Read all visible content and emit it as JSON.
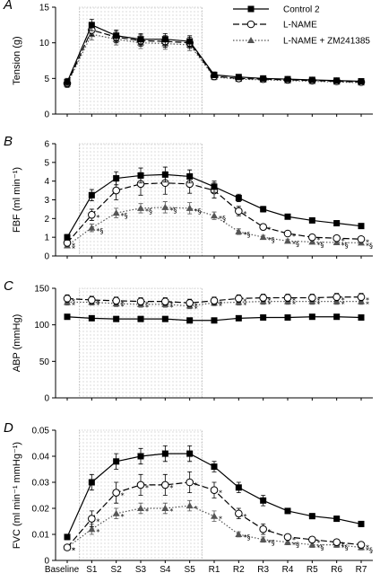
{
  "x_categories": [
    "Baseline",
    "S1",
    "S2",
    "S3",
    "S4",
    "S5",
    "R1",
    "R2",
    "R3",
    "R4",
    "R5",
    "R6",
    "R7"
  ],
  "stim_region": {
    "from": "S1",
    "to": "S5"
  },
  "legend": [
    {
      "label": "Control 2",
      "marker": "square-filled",
      "line": "solid"
    },
    {
      "label": "L-NAME",
      "marker": "circle-open",
      "line": "dashed"
    },
    {
      "label": "L-NAME + ZM241385",
      "marker": "triangle-filled",
      "line": "dotted"
    }
  ],
  "colors": {
    "ink": "#000000",
    "triangle": "#555555",
    "region_dot": "#999999"
  },
  "chart_data": [
    {
      "panel": "A",
      "type": "line",
      "ylabel": "Tension (g)",
      "ylim": [
        0,
        15
      ],
      "yticks": [
        0,
        5,
        10,
        15
      ],
      "grid": false,
      "series": [
        {
          "name": "Control 2",
          "values": [
            4.5,
            12.5,
            11,
            10.5,
            10.5,
            10.2,
            5.5,
            5.2,
            5.0,
            4.9,
            4.8,
            4.7,
            4.6
          ],
          "err": [
            0.5,
            0.8,
            0.8,
            0.8,
            0.8,
            0.8,
            0.4,
            0.3,
            0.3,
            0.3,
            0.3,
            0.3,
            0.3
          ]
        },
        {
          "name": "L-NAME",
          "values": [
            4.3,
            11.8,
            10.8,
            10.3,
            10.2,
            10.0,
            5.3,
            5.0,
            4.9,
            4.8,
            4.7,
            4.6,
            4.5
          ],
          "err": [
            0.5,
            0.8,
            0.8,
            0.8,
            0.8,
            0.8,
            0.4,
            0.3,
            0.3,
            0.3,
            0.3,
            0.3,
            0.3
          ]
        },
        {
          "name": "L-NAME + ZM241385",
          "values": [
            4.2,
            11.2,
            10.5,
            10.0,
            9.9,
            9.7,
            5.2,
            4.9,
            4.8,
            4.7,
            4.6,
            4.5,
            4.4
          ],
          "err": [
            0.5,
            0.8,
            0.8,
            0.8,
            0.8,
            0.8,
            0.4,
            0.3,
            0.3,
            0.3,
            0.3,
            0.3,
            0.3
          ]
        }
      ],
      "annotations": []
    },
    {
      "panel": "B",
      "type": "line",
      "ylabel": "FBF (ml min⁻¹)",
      "ylim": [
        0,
        6
      ],
      "yticks": [
        0,
        1,
        2,
        3,
        4,
        5,
        6
      ],
      "grid": false,
      "series": [
        {
          "name": "Control 2",
          "values": [
            1.0,
            3.25,
            4.15,
            4.3,
            4.35,
            4.25,
            3.7,
            3.1,
            2.5,
            2.1,
            1.9,
            1.75,
            1.6
          ],
          "err": [
            0.15,
            0.3,
            0.35,
            0.4,
            0.4,
            0.35,
            0.3,
            0.2,
            0.15,
            0.1,
            0.1,
            0.1,
            0.1
          ]
        },
        {
          "name": "L-NAME",
          "values": [
            0.7,
            2.2,
            3.5,
            3.85,
            3.9,
            3.85,
            3.5,
            2.4,
            1.55,
            1.2,
            1.0,
            0.95,
            0.9
          ],
          "err": [
            0.15,
            0.3,
            0.5,
            0.6,
            0.6,
            0.5,
            0.4,
            0.25,
            0.15,
            0.1,
            0.1,
            0.1,
            0.1
          ]
        },
        {
          "name": "L-NAME + ZM241385",
          "values": [
            0.55,
            1.5,
            2.3,
            2.55,
            2.6,
            2.55,
            2.15,
            1.3,
            1.0,
            0.8,
            0.75,
            0.72,
            0.7
          ],
          "err": [
            0.1,
            0.2,
            0.25,
            0.25,
            0.3,
            0.3,
            0.2,
            0.15,
            0.1,
            0.1,
            0.1,
            0.1,
            0.1
          ]
        }
      ],
      "annotations": [
        {
          "series": "L-NAME",
          "points": [
            0,
            1,
            7,
            8,
            9,
            10,
            11,
            12
          ],
          "text": "*"
        },
        {
          "series": "L-NAME + ZM241385",
          "points": [
            0
          ],
          "text": "*"
        },
        {
          "series": "L-NAME + ZM241385",
          "points": [
            1,
            2,
            3,
            4,
            5,
            6,
            7,
            8,
            9,
            10,
            11,
            12
          ],
          "text": "*§"
        }
      ]
    },
    {
      "panel": "C",
      "type": "line",
      "ylabel": "ABP (mmHg)",
      "ylim": [
        0,
        150
      ],
      "yticks": [
        0,
        50,
        100,
        150
      ],
      "grid": false,
      "series": [
        {
          "name": "Control 2",
          "values": [
            111,
            109,
            108,
            108,
            108,
            106,
            106,
            109,
            110,
            110,
            111,
            111,
            110
          ],
          "err": [
            3,
            3,
            3,
            3,
            3,
            3,
            3,
            3,
            3,
            3,
            3,
            3,
            3
          ]
        },
        {
          "name": "L-NAME",
          "values": [
            136,
            134,
            133,
            132,
            132,
            130,
            133,
            136,
            137,
            137,
            137,
            138,
            138
          ],
          "err": [
            5,
            5,
            5,
            5,
            5,
            5,
            5,
            5,
            5,
            5,
            5,
            5,
            5
          ]
        },
        {
          "name": "L-NAME + ZM241385",
          "values": [
            131,
            131,
            129,
            128,
            128,
            126,
            130,
            131,
            132,
            132,
            132,
            132,
            132
          ],
          "err": [
            4,
            4,
            4,
            4,
            4,
            4,
            4,
            4,
            4,
            4,
            4,
            4,
            4
          ]
        }
      ],
      "annotations": [
        {
          "series": "L-NAME",
          "points": [
            0,
            1,
            2,
            3,
            4,
            5,
            6,
            7,
            8,
            9,
            10,
            11,
            12
          ],
          "text": "*"
        },
        {
          "series": "L-NAME + ZM241385",
          "points": [
            0,
            1,
            2,
            3,
            4,
            5,
            6,
            7,
            8,
            9,
            10,
            11,
            12
          ],
          "text": "*"
        }
      ]
    },
    {
      "panel": "D",
      "type": "line",
      "ylabel": "FVC (ml min⁻¹ mmHg⁻¹)",
      "ylim": [
        0,
        0.05
      ],
      "yticks": [
        0,
        0.01,
        0.02,
        0.03,
        0.04,
        0.05
      ],
      "ytick_labels": [
        "0",
        "0.01",
        "0.02",
        "0.03",
        "0.04",
        "0.05"
      ],
      "grid": false,
      "series": [
        {
          "name": "Control 2",
          "values": [
            0.009,
            0.03,
            0.038,
            0.04,
            0.041,
            0.041,
            0.036,
            0.028,
            0.023,
            0.019,
            0.017,
            0.016,
            0.014
          ],
          "err": [
            0.001,
            0.003,
            0.003,
            0.003,
            0.003,
            0.003,
            0.002,
            0.002,
            0.002,
            0.001,
            0.001,
            0.001,
            0.001
          ]
        },
        {
          "name": "L-NAME",
          "values": [
            0.005,
            0.016,
            0.026,
            0.029,
            0.029,
            0.03,
            0.027,
            0.018,
            0.012,
            0.009,
            0.008,
            0.007,
            0.006
          ],
          "err": [
            0.001,
            0.003,
            0.004,
            0.004,
            0.004,
            0.004,
            0.003,
            0.002,
            0.002,
            0.001,
            0.001,
            0.001,
            0.001
          ]
        },
        {
          "name": "L-NAME + ZM241385",
          "values": [
            0.005,
            0.012,
            0.018,
            0.02,
            0.02,
            0.021,
            0.017,
            0.01,
            0.008,
            0.007,
            0.006,
            0.006,
            0.005
          ],
          "err": [
            0.001,
            0.002,
            0.002,
            0.002,
            0.002,
            0.002,
            0.002,
            0.001,
            0.001,
            0.001,
            0.001,
            0.001,
            0.001
          ]
        }
      ],
      "annotations": [
        {
          "series": "L-NAME",
          "points": [
            0,
            1,
            2,
            3,
            4,
            5,
            6,
            7,
            8,
            9,
            10,
            11,
            12
          ],
          "text": "*"
        },
        {
          "series": "L-NAME + ZM241385",
          "points": [
            0,
            1,
            2,
            3,
            4,
            5,
            6
          ],
          "text": "*"
        },
        {
          "series": "L-NAME + ZM241385",
          "points": [
            7,
            8,
            9,
            10,
            11,
            12
          ],
          "text": "*§"
        }
      ]
    }
  ]
}
